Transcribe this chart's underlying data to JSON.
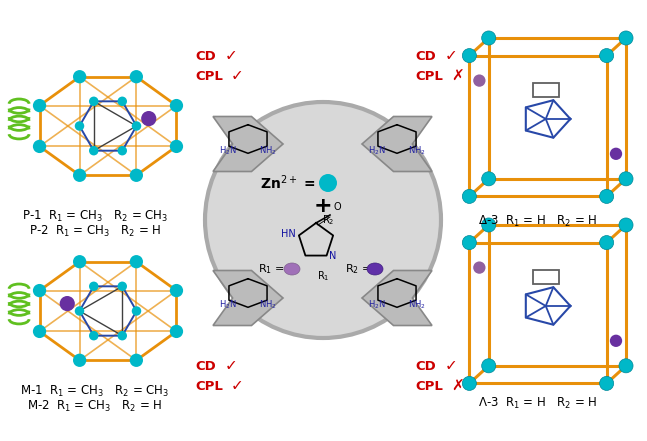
{
  "bg": "#ffffff",
  "orange": "#E8900A",
  "cyan": "#00B8C8",
  "purple_light": "#9060A0",
  "purple_dark": "#6830A0",
  "blue_bond": "#2848A8",
  "green_spring": "#60C020",
  "red": "#CC0000",
  "gray_arrow": "#B0B0B0",
  "gray_arrow_edge": "#888888",
  "gray_circle": "#C8C8C8",
  "gray_circle_edge": "#A0A0A0",
  "black": "#000000",
  "label_p1": "P-1  R",
  "label_p1b": " = CH",
  "label_p1c": "   R",
  "label_p1d": " = CH",
  "label_p2": "P-2  R",
  "label_p2b": " = CH",
  "label_p2c": "   R",
  "label_p2d": " = H",
  "label_m1": "M-1  R",
  "label_m2": "M-2  R",
  "label_delta": "Δ-3  R",
  "label_lambda": "Λ-3  R",
  "fig_width": 6.47,
  "fig_height": 4.41,
  "dpi": 100
}
